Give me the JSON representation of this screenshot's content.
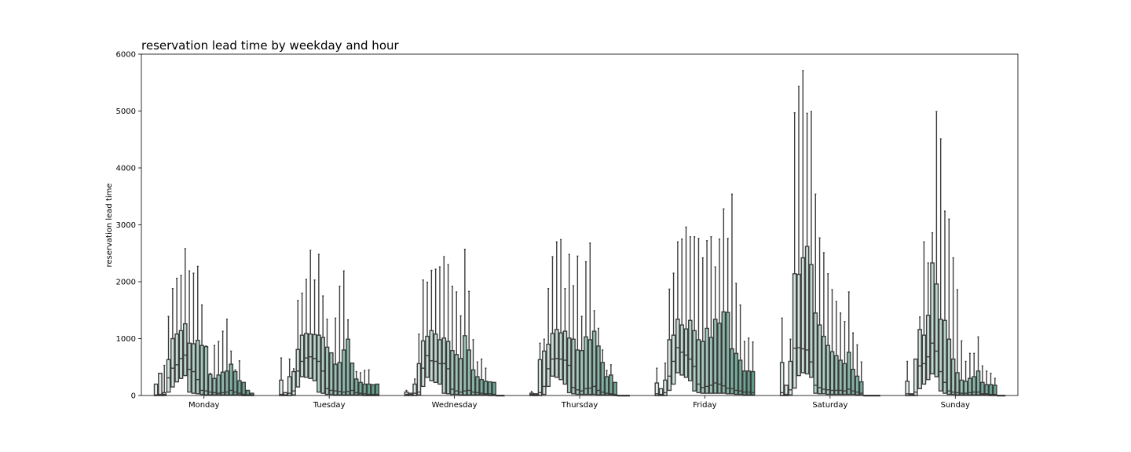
{
  "chart_data": {
    "type": "box",
    "title": "reservation lead time by weekday and hour",
    "xlabel": "",
    "ylabel": "reservation lead time",
    "ylim": [
      0,
      6000
    ],
    "yticks": [
      0,
      1000,
      2000,
      3000,
      4000,
      5000,
      6000
    ],
    "categories": [
      "Monday",
      "Tuesday",
      "Wednesday",
      "Thursday",
      "Friday",
      "Saturday",
      "Sunday"
    ],
    "hue": "hour",
    "hue_levels": 24,
    "color_start": "#e6f0ec",
    "color_end": "#5f9f8c",
    "line_color": "#3c3c3c",
    "grid": false,
    "whisker_tops": {
      "Monday": [
        0,
        0,
        530,
        1390,
        1880,
        2060,
        2110,
        2580,
        2190,
        2150,
        2270,
        1590,
        870,
        390,
        880,
        950,
        1130,
        1340,
        780,
        450,
        610,
        150,
        70,
        30
      ],
      "Tuesday": [
        660,
        0,
        640,
        470,
        1670,
        1800,
        2040,
        2550,
        2030,
        2480,
        1750,
        1340,
        560,
        1360,
        1920,
        2190,
        1330,
        310,
        420,
        400,
        440,
        450,
        0,
        0
      ],
      "Wednesday": [
        90,
        0,
        290,
        1080,
        2030,
        1990,
        2200,
        2220,
        2260,
        2440,
        2300,
        1920,
        1820,
        1400,
        2570,
        1830,
        980,
        590,
        640,
        480,
        0,
        0,
        0,
        0
      ],
      "Thursday": [
        70,
        0,
        920,
        990,
        1880,
        2440,
        2700,
        2740,
        1880,
        2480,
        1930,
        2450,
        1390,
        2350,
        2680,
        1490,
        1180,
        800,
        440,
        540,
        0,
        0,
        0,
        0
      ],
      "Friday": [
        480,
        0,
        570,
        1870,
        2150,
        2700,
        2750,
        2960,
        2790,
        2790,
        2760,
        2420,
        2720,
        2790,
        2260,
        2750,
        3280,
        2760,
        3540,
        1970,
        1590,
        950,
        1010,
        940
      ],
      "Saturday": [
        1360,
        0,
        990,
        4970,
        5430,
        5710,
        4960,
        4990,
        3540,
        2770,
        2510,
        2140,
        1860,
        1650,
        1450,
        1300,
        1820,
        1100,
        890,
        590,
        0,
        0,
        0,
        0
      ],
      "Sunday": [
        600,
        0,
        0,
        1380,
        2700,
        2330,
        2860,
        4990,
        4510,
        3240,
        3100,
        2420,
        1860,
        960,
        600,
        740,
        740,
        1030,
        520,
        430,
        390,
        300,
        0,
        0
      ]
    },
    "q3": {
      "Monday": [
        200,
        390,
        50,
        630,
        1000,
        1080,
        1140,
        1260,
        920,
        910,
        970,
        880,
        860,
        370,
        300,
        360,
        410,
        430,
        550,
        420,
        260,
        230,
        90,
        40
      ],
      "Tuesday": [
        270,
        50,
        330,
        420,
        810,
        1060,
        1090,
        1080,
        1070,
        1060,
        1020,
        850,
        750,
        550,
        580,
        800,
        990,
        570,
        290,
        230,
        200,
        200,
        190,
        200
      ],
      "Wednesday": [
        60,
        40,
        200,
        560,
        960,
        1040,
        1140,
        1080,
        980,
        1010,
        950,
        790,
        720,
        650,
        1050,
        800,
        450,
        330,
        280,
        250,
        240,
        230,
        0,
        0
      ],
      "Thursday": [
        40,
        30,
        630,
        780,
        900,
        1090,
        1160,
        1100,
        1130,
        1010,
        990,
        800,
        790,
        1030,
        980,
        1130,
        870,
        580,
        330,
        360,
        230,
        0,
        0,
        0
      ],
      "Friday": [
        220,
        120,
        270,
        980,
        1060,
        1340,
        1240,
        1170,
        1320,
        1140,
        980,
        950,
        1180,
        1020,
        1340,
        1270,
        1470,
        1460,
        820,
        740,
        620,
        430,
        430,
        420
      ],
      "Saturday": [
        580,
        180,
        600,
        2140,
        2130,
        2420,
        2620,
        2300,
        1450,
        1240,
        1040,
        880,
        770,
        700,
        620,
        560,
        760,
        460,
        340,
        240,
        0,
        0,
        0,
        0
      ],
      "Sunday": [
        250,
        30,
        640,
        1160,
        1060,
        1410,
        2330,
        1960,
        1340,
        1320,
        990,
        640,
        400,
        270,
        250,
        300,
        330,
        430,
        230,
        190,
        190,
        180,
        0,
        0
      ]
    },
    "median": {
      "Monday": [
        10,
        20,
        20,
        310,
        480,
        540,
        650,
        710,
        460,
        420,
        280,
        90,
        80,
        60,
        50,
        40,
        50,
        60,
        90,
        60,
        40,
        20,
        10,
        10
      ],
      "Tuesday": [
        20,
        10,
        40,
        80,
        430,
        600,
        660,
        680,
        650,
        600,
        430,
        120,
        90,
        80,
        70,
        60,
        70,
        90,
        50,
        40,
        30,
        20,
        20,
        20
      ],
      "Wednesday": [
        20,
        20,
        40,
        60,
        480,
        700,
        610,
        600,
        560,
        560,
        470,
        110,
        80,
        60,
        80,
        90,
        60,
        50,
        40,
        30,
        30,
        20,
        0,
        0
      ],
      "Thursday": [
        20,
        10,
        50,
        160,
        470,
        640,
        650,
        640,
        620,
        530,
        140,
        100,
        80,
        120,
        130,
        160,
        90,
        60,
        40,
        30,
        20,
        0,
        0,
        0
      ],
      "Friday": [
        30,
        20,
        50,
        340,
        600,
        840,
        760,
        710,
        640,
        510,
        200,
        140,
        160,
        180,
        220,
        200,
        170,
        130,
        120,
        90,
        80,
        60,
        60,
        50
      ],
      "Saturday": [
        50,
        20,
        100,
        830,
        840,
        820,
        800,
        590,
        180,
        140,
        110,
        100,
        90,
        90,
        90,
        80,
        110,
        80,
        60,
        40,
        0,
        0,
        0,
        0
      ],
      "Sunday": [
        30,
        20,
        60,
        520,
        560,
        680,
        920,
        780,
        420,
        230,
        80,
        60,
        50,
        40,
        40,
        50,
        60,
        60,
        30,
        30,
        20,
        20,
        0,
        0
      ]
    },
    "q1": {
      "Monday": [
        0,
        0,
        0,
        60,
        150,
        240,
        300,
        350,
        60,
        40,
        30,
        20,
        10,
        10,
        10,
        10,
        10,
        10,
        10,
        10,
        10,
        0,
        0,
        0
      ],
      "Tuesday": [
        0,
        0,
        0,
        10,
        150,
        330,
        320,
        300,
        260,
        60,
        40,
        20,
        20,
        10,
        10,
        10,
        10,
        10,
        10,
        10,
        0,
        0,
        0,
        0
      ],
      "Wednesday": [
        0,
        0,
        0,
        10,
        160,
        320,
        260,
        230,
        200,
        40,
        30,
        20,
        20,
        10,
        10,
        10,
        10,
        10,
        10,
        10,
        0,
        0,
        0,
        0
      ],
      "Thursday": [
        0,
        0,
        0,
        20,
        160,
        340,
        320,
        280,
        200,
        50,
        30,
        20,
        20,
        20,
        20,
        20,
        10,
        10,
        10,
        10,
        0,
        0,
        0,
        0
      ],
      "Friday": [
        0,
        0,
        0,
        90,
        200,
        400,
        360,
        320,
        260,
        80,
        50,
        40,
        40,
        40,
        40,
        40,
        40,
        30,
        30,
        20,
        20,
        10,
        10,
        10
      ],
      "Saturday": [
        0,
        0,
        10,
        130,
        350,
        400,
        380,
        320,
        40,
        30,
        30,
        20,
        20,
        20,
        20,
        20,
        20,
        20,
        10,
        10,
        0,
        0,
        0,
        0
      ],
      "Sunday": [
        0,
        0,
        0,
        120,
        200,
        280,
        380,
        330,
        80,
        40,
        20,
        20,
        10,
        10,
        10,
        10,
        10,
        10,
        10,
        10,
        0,
        0,
        0,
        0
      ]
    }
  }
}
